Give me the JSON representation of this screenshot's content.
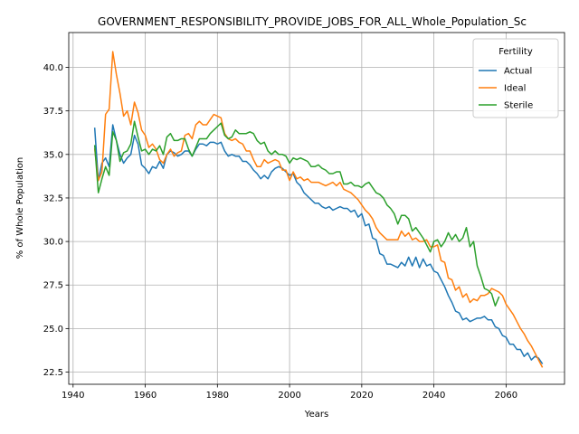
{
  "chart_data": {
    "type": "line",
    "title": "GOVERNMENT_RESPONSIBILITY_PROVIDE_JOBS_FOR_ALL_Whole_Population_Sc",
    "xlabel": "Years",
    "ylabel": "% of Whole Population",
    "xlim": [
      1938.8,
      2076.2
    ],
    "ylim": [
      21.8,
      42.0
    ],
    "xticks": [
      1940,
      1960,
      1980,
      2000,
      2020,
      2040,
      2060
    ],
    "yticks": [
      22.5,
      25.0,
      27.5,
      30.0,
      32.5,
      35.0,
      37.5,
      40.0
    ],
    "ytick_labels": [
      "22.5",
      "25.0",
      "27.5",
      "30.0",
      "32.5",
      "35.0",
      "37.5",
      "40.0"
    ],
    "grid": true,
    "legend": {
      "title": "Fertility",
      "position": "top-right"
    },
    "series": [
      {
        "name": "Actual",
        "color": "#1f77b4",
        "x": [
          1946,
          1947,
          1948,
          1949,
          1950,
          1951,
          1952,
          1953,
          1954,
          1955,
          1956,
          1957,
          1958,
          1959,
          1960,
          1961,
          1962,
          1963,
          1964,
          1965,
          1966,
          1967,
          1968,
          1969,
          1970,
          1971,
          1972,
          1973,
          1974,
          1975,
          1976,
          1977,
          1978,
          1979,
          1980,
          1981,
          1982,
          1983,
          1984,
          1985,
          1986,
          1987,
          1988,
          1989,
          1990,
          1991,
          1992,
          1993,
          1994,
          1995,
          1996,
          1997,
          1998,
          1999,
          2000,
          2001,
          2002,
          2003,
          2004,
          2005,
          2006,
          2007,
          2008,
          2009,
          2010,
          2011,
          2012,
          2013,
          2014,
          2015,
          2016,
          2017,
          2018,
          2019,
          2020,
          2021,
          2022,
          2023,
          2024,
          2025,
          2026,
          2027,
          2028,
          2029,
          2030,
          2031,
          2032,
          2033,
          2034,
          2035,
          2036,
          2037,
          2038,
          2039,
          2040,
          2041,
          2042,
          2043,
          2044,
          2045,
          2046,
          2047,
          2048,
          2049,
          2050,
          2051,
          2052,
          2053,
          2054,
          2055,
          2056,
          2057,
          2058,
          2059,
          2060,
          2061,
          2062,
          2063,
          2064,
          2065,
          2066,
          2067,
          2068,
          2069,
          2070
        ],
        "values": [
          36.5,
          33.5,
          34.5,
          34.8,
          34.3,
          36.7,
          35.8,
          35.0,
          34.5,
          34.8,
          35.0,
          36.1,
          35.6,
          34.4,
          34.2,
          33.9,
          34.3,
          34.2,
          34.6,
          34.2,
          35.0,
          35.2,
          35.1,
          34.9,
          35.0,
          35.2,
          35.2,
          34.9,
          35.3,
          35.6,
          35.6,
          35.5,
          35.7,
          35.7,
          35.6,
          35.7,
          35.2,
          34.9,
          35.0,
          34.9,
          34.9,
          34.6,
          34.6,
          34.4,
          34.1,
          33.9,
          33.6,
          33.8,
          33.6,
          34.0,
          34.2,
          34.3,
          34.2,
          34.0,
          33.8,
          33.9,
          33.4,
          33.2,
          32.8,
          32.6,
          32.4,
          32.2,
          32.2,
          32.0,
          31.9,
          32.0,
          31.8,
          31.9,
          32.0,
          31.9,
          31.9,
          31.7,
          31.8,
          31.4,
          31.6,
          30.9,
          31.0,
          30.2,
          30.1,
          29.3,
          29.2,
          28.7,
          28.7,
          28.6,
          28.5,
          28.8,
          28.6,
          29.1,
          28.6,
          29.1,
          28.5,
          29.0,
          28.6,
          28.7,
          28.3,
          28.2,
          27.8,
          27.4,
          26.9,
          26.5,
          26.0,
          25.9,
          25.5,
          25.6,
          25.4,
          25.5,
          25.6,
          25.6,
          25.7,
          25.5,
          25.5,
          25.1,
          25.0,
          24.6,
          24.5,
          24.1,
          24.1,
          23.8,
          23.8,
          23.4,
          23.6,
          23.2,
          23.4,
          23.3,
          23.0
        ],
        "note_type": "line"
      },
      {
        "name": "Ideal",
        "color": "#ff7f0e",
        "x": [
          1946,
          1947,
          1948,
          1949,
          1950,
          1951,
          1952,
          1953,
          1954,
          1955,
          1956,
          1957,
          1958,
          1959,
          1960,
          1961,
          1962,
          1963,
          1964,
          1965,
          1966,
          1967,
          1968,
          1969,
          1970,
          1971,
          1972,
          1973,
          1974,
          1975,
          1976,
          1977,
          1978,
          1979,
          1980,
          1981,
          1982,
          1983,
          1984,
          1985,
          1986,
          1987,
          1988,
          1989,
          1990,
          1991,
          1992,
          1993,
          1994,
          1995,
          1996,
          1997,
          1998,
          1999,
          2000,
          2001,
          2002,
          2003,
          2004,
          2005,
          2006,
          2007,
          2008,
          2009,
          2010,
          2011,
          2012,
          2013,
          2014,
          2015,
          2016,
          2017,
          2018,
          2019,
          2020,
          2021,
          2022,
          2023,
          2024,
          2025,
          2026,
          2027,
          2028,
          2029,
          2030,
          2031,
          2032,
          2033,
          2034,
          2035,
          2036,
          2037,
          2038,
          2039,
          2040,
          2041,
          2042,
          2043,
          2044,
          2045,
          2046,
          2047,
          2048,
          2049,
          2050,
          2051,
          2052,
          2053,
          2054,
          2055,
          2056,
          2057,
          2058,
          2059,
          2060,
          2061,
          2062,
          2063,
          2064,
          2065,
          2066,
          2067,
          2068,
          2069,
          2070
        ],
        "values": [
          35.3,
          33.5,
          34.0,
          37.3,
          37.6,
          40.9,
          39.6,
          38.5,
          37.2,
          37.5,
          36.7,
          38.0,
          37.4,
          36.4,
          36.1,
          35.4,
          35.6,
          35.3,
          34.7,
          34.5,
          35.0,
          35.3,
          34.9,
          35.1,
          35.2,
          36.1,
          36.2,
          35.9,
          36.7,
          36.9,
          36.7,
          36.7,
          37.0,
          37.3,
          37.2,
          37.1,
          36.2,
          35.9,
          35.8,
          35.9,
          35.7,
          35.6,
          35.2,
          35.2,
          34.7,
          34.3,
          34.3,
          34.7,
          34.5,
          34.6,
          34.7,
          34.6,
          34.1,
          34.1,
          33.5,
          34.0,
          33.6,
          33.7,
          33.5,
          33.6,
          33.4,
          33.4,
          33.4,
          33.3,
          33.2,
          33.3,
          33.4,
          33.2,
          33.4,
          33.0,
          32.9,
          32.8,
          32.6,
          32.4,
          32.1,
          31.8,
          31.6,
          31.3,
          30.8,
          30.5,
          30.3,
          30.1,
          30.1,
          30.1,
          30.1,
          30.6,
          30.3,
          30.5,
          30.1,
          30.2,
          30.0,
          30.0,
          30.1,
          29.7,
          29.7,
          29.8,
          28.9,
          28.8,
          27.9,
          27.8,
          27.2,
          27.4,
          26.8,
          27.0,
          26.5,
          26.7,
          26.6,
          26.9,
          26.9,
          27.0,
          27.3,
          27.2,
          27.1,
          26.9,
          26.4,
          26.1,
          25.8,
          25.4,
          25.0,
          24.7,
          24.3,
          24.0,
          23.6,
          23.2,
          22.8
        ],
        "note_type": "line"
      },
      {
        "name": "Sterile",
        "color": "#2ca02c",
        "x": [
          1946,
          1947,
          1948,
          1949,
          1950,
          1951,
          1952,
          1953,
          1954,
          1955,
          1956,
          1957,
          1958,
          1959,
          1960,
          1961,
          1962,
          1963,
          1964,
          1965,
          1966,
          1967,
          1968,
          1969,
          1970,
          1971,
          1972,
          1973,
          1974,
          1975,
          1976,
          1977,
          1978,
          1979,
          1980,
          1981,
          1982,
          1983,
          1984,
          1985,
          1986,
          1987,
          1988,
          1989,
          1990,
          1991,
          1992,
          1993,
          1994,
          1995,
          1996,
          1997,
          1998,
          1999,
          2000,
          2001,
          2002,
          2003,
          2004,
          2005,
          2006,
          2007,
          2008,
          2009,
          2010,
          2011,
          2012,
          2013,
          2014,
          2015,
          2016,
          2017,
          2018,
          2019,
          2020,
          2021,
          2022,
          2023,
          2024,
          2025,
          2026,
          2027,
          2028,
          2029,
          2030,
          2031,
          2032,
          2033,
          2034,
          2035,
          2036,
          2037,
          2038,
          2039,
          2040,
          2041,
          2042,
          2043,
          2044,
          2045,
          2046,
          2047,
          2048,
          2049,
          2050,
          2051,
          2052,
          2053,
          2054,
          2055,
          2056,
          2057,
          2058
        ],
        "values": [
          35.5,
          32.8,
          33.6,
          34.3,
          33.8,
          36.3,
          35.8,
          34.6,
          35.1,
          35.2,
          35.6,
          36.9,
          36.0,
          35.2,
          35.3,
          35.0,
          35.3,
          35.2,
          35.5,
          35.0,
          36.0,
          36.2,
          35.8,
          35.8,
          35.9,
          35.9,
          35.3,
          34.9,
          35.4,
          35.9,
          35.9,
          35.9,
          36.2,
          36.4,
          36.6,
          36.8,
          36.1,
          35.9,
          36.0,
          36.4,
          36.2,
          36.2,
          36.2,
          36.3,
          36.2,
          35.8,
          35.6,
          35.7,
          35.2,
          35.0,
          35.2,
          35.0,
          35.0,
          34.9,
          34.5,
          34.8,
          34.7,
          34.8,
          34.7,
          34.6,
          34.3,
          34.3,
          34.4,
          34.2,
          34.1,
          33.9,
          33.9,
          34.0,
          34.0,
          33.3,
          33.3,
          33.4,
          33.2,
          33.2,
          33.1,
          33.3,
          33.4,
          33.1,
          32.8,
          32.7,
          32.5,
          32.1,
          31.9,
          31.6,
          31.0,
          31.5,
          31.5,
          31.3,
          30.6,
          30.8,
          30.5,
          30.2,
          29.8,
          29.4,
          30.0,
          30.1,
          29.7,
          30.0,
          30.5,
          30.1,
          30.4,
          30.0,
          30.2,
          30.8,
          29.7,
          30.0,
          28.6,
          28.0,
          27.3,
          27.2,
          27.0,
          26.3,
          26.8
        ],
        "note_type": "line"
      }
    ]
  }
}
